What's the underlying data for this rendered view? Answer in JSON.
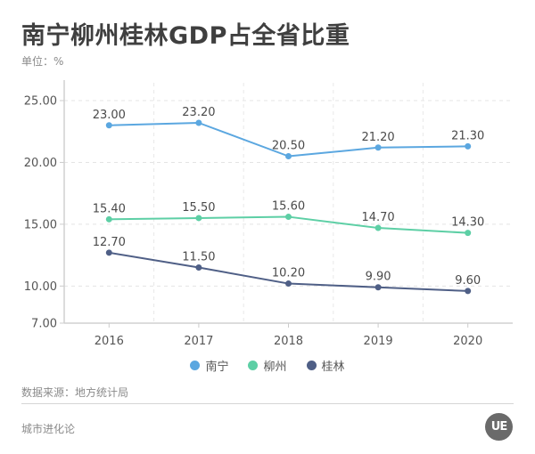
{
  "header": {
    "title": "南宁柳州桂林GDP占全省比重",
    "unit": "单位：%"
  },
  "footer": {
    "source": "数据来源：地方统计局",
    "brand": "城市进化论",
    "logo_text": "UE"
  },
  "chart_data": {
    "type": "line",
    "title": "南宁柳州桂林GDP占全省比重",
    "xlabel": "",
    "ylabel": "单位：%",
    "categories": [
      "2016",
      "2017",
      "2018",
      "2019",
      "2020"
    ],
    "ylim": [
      7,
      25
    ],
    "yticks": [
      7,
      10,
      15,
      20,
      25
    ],
    "ytick_labels": [
      "7.00",
      "10.00",
      "15.00",
      "20.00",
      "25.00"
    ],
    "grid": true,
    "legend_position": "bottom-center",
    "series": [
      {
        "name": "南宁",
        "color": "#5ba7e0",
        "values": [
          23.0,
          23.2,
          20.5,
          21.2,
          21.3
        ],
        "labels": [
          "23.00",
          "23.20",
          "20.50",
          "21.20",
          "21.30"
        ]
      },
      {
        "name": "柳州",
        "color": "#5dcfa5",
        "values": [
          15.4,
          15.5,
          15.6,
          14.7,
          14.3
        ],
        "labels": [
          "15.40",
          "15.50",
          "15.60",
          "14.70",
          "14.30"
        ]
      },
      {
        "name": "桂林",
        "color": "#4f5f86",
        "values": [
          12.7,
          11.5,
          10.2,
          9.9,
          9.6
        ],
        "labels": [
          "12.70",
          "11.50",
          "10.20",
          "9.90",
          "9.60"
        ]
      }
    ]
  }
}
